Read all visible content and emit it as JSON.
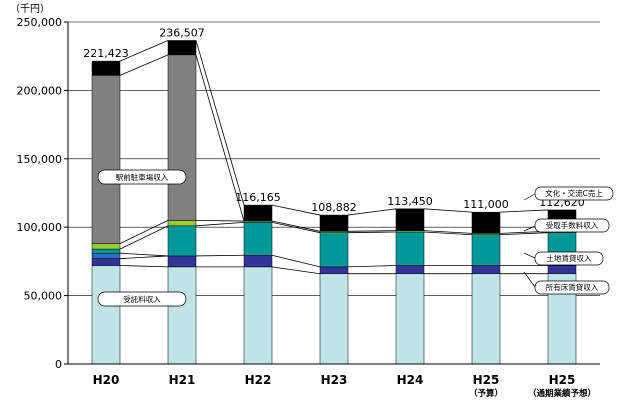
{
  "chart_data": {
    "type": "bar",
    "stacked": true,
    "unit_label": "（千円）",
    "categories": [
      "H20",
      "H21",
      "H22",
      "H23",
      "H24",
      "H25",
      "H25"
    ],
    "category_sublabels": [
      "",
      "",
      "",
      "",
      "",
      "（予算）",
      "（通期業績予想）"
    ],
    "series": [
      {
        "name": "受託料収入",
        "color": "#bfe3e6",
        "values": [
          72000,
          71000,
          71000,
          66000,
          66000,
          66000,
          66000
        ]
      },
      {
        "name": "所有床賃貸収入",
        "color": "#333399",
        "values": [
          5000,
          8000,
          8500,
          5000,
          6000,
          6000,
          6000
        ]
      },
      {
        "name": "土地賃貸収入",
        "color": "#2b6dc0",
        "values": [
          4000,
          0,
          0,
          0,
          0,
          0,
          0
        ]
      },
      {
        "name": "",
        "color": "#009999",
        "values": [
          3000,
          22000,
          24000,
          25000,
          24500,
          22500,
          24000
        ]
      },
      {
        "name": "受取手数料収入",
        "color": "#99cc33",
        "values": [
          4000,
          4000,
          1000,
          1000,
          1000,
          1000,
          1000
        ]
      },
      {
        "name": "駅前駐車場収入",
        "color": "#808080",
        "values": [
          123000,
          121000,
          0,
          0,
          0,
          0,
          0
        ]
      },
      {
        "name": "文化・交流C売上",
        "color": "#000000",
        "values": [
          10423,
          10507,
          11665,
          11882,
          15950,
          15500,
          15620
        ]
      }
    ],
    "totals": [
      221423,
      236507,
      116165,
      108882,
      113450,
      111000,
      112620
    ],
    "total_labels": [
      "221,423",
      "236,507",
      "116,165",
      "108,882",
      "113,450",
      "111,000",
      "112,620"
    ],
    "annotations": [
      "駅前駐車場収入",
      "受託料収入",
      "文化・交流C売上",
      "受取手数料収入",
      "土地賃貸収入",
      "所有床賃貸収入"
    ],
    "yticks": [
      "0",
      "50,000",
      "100,000",
      "150,000",
      "200,000",
      "250,000"
    ],
    "ylim": [
      0,
      250000
    ],
    "grid": true,
    "legend": "annotated-callouts"
  }
}
